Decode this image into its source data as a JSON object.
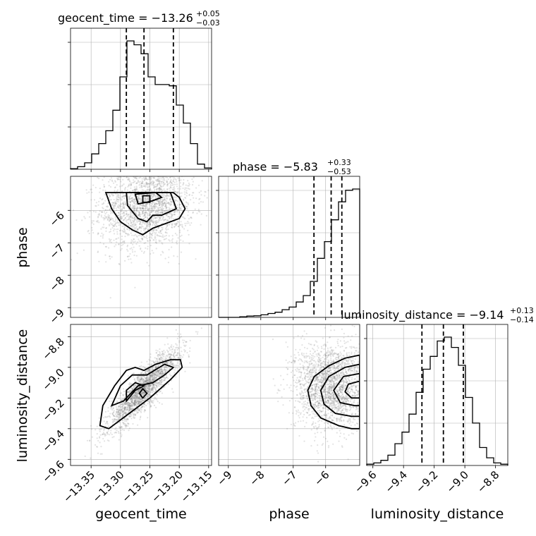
{
  "chart_data": {
    "type": "corner",
    "parameters": [
      {
        "name": "geocent_time",
        "label": "geocent_time",
        "range": [
          -13.385,
          -13.145
        ],
        "ticks": [
          -13.35,
          -13.3,
          -13.25,
          -13.2,
          -13.15
        ],
        "tick_labels": [
          "−13.35",
          "−13.30",
          "−13.25",
          "−13.20",
          "−13.15"
        ],
        "title": {
          "main": "geocent_time = −13.26",
          "upper": "+0.05",
          "lower": "−0.03"
        },
        "quantiles": [
          -13.29,
          -13.26,
          -13.21
        ],
        "hist_bins": [
          -13.385,
          -13.373,
          -13.361,
          -13.349,
          -13.337,
          -13.325,
          -13.313,
          -13.301,
          -13.289,
          -13.277,
          -13.265,
          -13.253,
          -13.241,
          -13.229,
          -13.217,
          -13.205,
          -13.193,
          -13.181,
          -13.169,
          -13.157,
          -13.145
        ],
        "hist_counts": [
          0.005,
          0.02,
          0.05,
          0.12,
          0.2,
          0.3,
          0.46,
          0.72,
          1.0,
          0.97,
          0.9,
          0.72,
          0.66,
          0.66,
          0.65,
          0.5,
          0.36,
          0.2,
          0.04,
          0.01
        ]
      },
      {
        "name": "phase",
        "label": "phase",
        "range": [
          -9.3,
          -4.95
        ],
        "ticks": [
          -9,
          -8,
          -7,
          -6
        ],
        "tick_labels": [
          "−9",
          "−8",
          "−7",
          "−6"
        ],
        "title": {
          "main": "phase = −5.83",
          "upper": "+0.33",
          "lower": "−0.53"
        },
        "quantiles": [
          -6.36,
          -5.83,
          -5.5
        ],
        "hist_bins": [
          -9.3,
          -9.0825,
          -8.865,
          -8.6475,
          -8.43,
          -8.2125,
          -7.995,
          -7.7775,
          -7.56,
          -7.3425,
          -7.125,
          -6.9075,
          -6.69,
          -6.4725,
          -6.255,
          -6.0375,
          -5.82,
          -5.6025,
          -5.385,
          -5.1675,
          -4.95
        ],
        "hist_counts": [
          0.0,
          0.0,
          0.0,
          0.005,
          0.01,
          0.012,
          0.02,
          0.03,
          0.04,
          0.06,
          0.08,
          0.12,
          0.17,
          0.28,
          0.46,
          0.59,
          0.76,
          0.9,
          0.99,
          1.0
        ]
      },
      {
        "name": "luminosity_distance",
        "label": "luminosity_distance",
        "range": [
          -9.64,
          -8.72
        ],
        "ticks": [
          -9.6,
          -9.4,
          -9.2,
          -9.0,
          -8.8
        ],
        "tick_labels": [
          "−9.6",
          "−9.4",
          "−9.2",
          "−9.0",
          "−8.8"
        ],
        "title": {
          "main": "luminosity_distance = −9.14",
          "upper": "+0.13",
          "lower": "−0.14"
        },
        "quantiles": [
          -9.28,
          -9.14,
          -9.01
        ],
        "hist_bins": [
          -9.64,
          -9.594,
          -9.548,
          -9.502,
          -9.456,
          -9.41,
          -9.364,
          -9.318,
          -9.272,
          -9.226,
          -9.18,
          -9.134,
          -9.088,
          -9.042,
          -8.996,
          -8.95,
          -8.904,
          -8.858,
          -8.812,
          -8.766,
          -8.72
        ],
        "hist_counts": [
          0.01,
          0.02,
          0.04,
          0.08,
          0.17,
          0.26,
          0.4,
          0.57,
          0.75,
          0.85,
          0.97,
          1.0,
          0.92,
          0.78,
          0.53,
          0.33,
          0.14,
          0.06,
          0.02,
          0.01
        ]
      }
    ],
    "grid": true,
    "pairs": [
      {
        "x": "geocent_time",
        "y": "phase",
        "mean": [
          -13.255,
          -5.85
        ],
        "std": [
          0.04,
          0.65
        ],
        "corr": 0.15,
        "contours": [
          [
            [
              -13.325,
              -5.45
            ],
            [
              -13.315,
              -5.95
            ],
            [
              -13.3,
              -6.35
            ],
            [
              -13.28,
              -6.6
            ],
            [
              -13.262,
              -6.75
            ],
            [
              -13.245,
              -6.55
            ],
            [
              -13.23,
              -6.45
            ],
            [
              -13.2,
              -6.25
            ],
            [
              -13.19,
              -5.95
            ],
            [
              -13.2,
              -5.6
            ],
            [
              -13.21,
              -5.45
            ]
          ],
          [
            [
              -13.29,
              -5.45
            ],
            [
              -13.288,
              -5.85
            ],
            [
              -13.27,
              -6.25
            ],
            [
              -13.255,
              -6.35
            ],
            [
              -13.245,
              -6.15
            ],
            [
              -13.23,
              -6.15
            ],
            [
              -13.205,
              -5.95
            ],
            [
              -13.21,
              -5.7
            ],
            [
              -13.215,
              -5.45
            ]
          ],
          [
            [
              -13.275,
              -5.5
            ],
            [
              -13.27,
              -5.8
            ],
            [
              -13.255,
              -5.75
            ],
            [
              -13.245,
              -5.7
            ],
            [
              -13.23,
              -5.6
            ],
            [
              -13.24,
              -5.45
            ]
          ],
          [
            [
              -13.262,
              -5.55
            ],
            [
              -13.262,
              -5.75
            ],
            [
              -13.25,
              -5.75
            ],
            [
              -13.25,
              -5.55
            ]
          ]
        ]
      },
      {
        "x": "geocent_time",
        "y": "luminosity_distance",
        "mean": [
          -13.26,
          -9.14
        ],
        "std": [
          0.03,
          0.13
        ],
        "corr": 0.88,
        "contours": [
          [
            [
              -13.335,
              -9.38
            ],
            [
              -13.32,
              -9.4
            ],
            [
              -13.285,
              -9.3
            ],
            [
              -13.25,
              -9.2
            ],
            [
              -13.215,
              -9.08
            ],
            [
              -13.195,
              -9.0
            ],
            [
              -13.198,
              -8.95
            ],
            [
              -13.215,
              -8.95
            ],
            [
              -13.24,
              -8.98
            ],
            [
              -13.26,
              -9.02
            ],
            [
              -13.275,
              -9.0
            ],
            [
              -13.29,
              -9.02
            ],
            [
              -13.31,
              -9.12
            ],
            [
              -13.33,
              -9.25
            ]
          ],
          [
            [
              -13.315,
              -9.25
            ],
            [
              -13.295,
              -9.22
            ],
            [
              -13.27,
              -9.12
            ],
            [
              -13.245,
              -9.1
            ],
            [
              -13.225,
              -9.05
            ],
            [
              -13.21,
              -9.0
            ],
            [
              -13.225,
              -8.98
            ],
            [
              -13.255,
              -9.05
            ],
            [
              -13.28,
              -9.05
            ],
            [
              -13.3,
              -9.12
            ]
          ],
          [
            [
              -13.29,
              -9.22
            ],
            [
              -13.275,
              -9.15
            ],
            [
              -13.26,
              -9.12
            ],
            [
              -13.275,
              -9.1
            ],
            [
              -13.29,
              -9.15
            ]
          ],
          [
            [
              -13.262,
              -9.2
            ],
            [
              -13.255,
              -9.17
            ],
            [
              -13.262,
              -9.14
            ],
            [
              -13.268,
              -9.17
            ]
          ]
        ]
      },
      {
        "x": "phase",
        "y": "luminosity_distance",
        "mean": [
          -5.85,
          -9.12
        ],
        "std": [
          0.55,
          0.14
        ],
        "corr": 0.0,
        "contours": [
          [
            [
              -4.95,
              -8.92
            ],
            [
              -5.4,
              -8.94
            ],
            [
              -5.9,
              -8.99
            ],
            [
              -6.35,
              -9.06
            ],
            [
              -6.55,
              -9.15
            ],
            [
              -6.45,
              -9.25
            ],
            [
              -6.15,
              -9.33
            ],
            [
              -5.6,
              -9.38
            ],
            [
              -5.2,
              -9.4
            ],
            [
              -4.95,
              -9.4
            ]
          ],
          [
            [
              -4.95,
              -8.98
            ],
            [
              -5.4,
              -9.0
            ],
            [
              -5.9,
              -9.06
            ],
            [
              -6.15,
              -9.15
            ],
            [
              -6.05,
              -9.24
            ],
            [
              -5.7,
              -9.3
            ],
            [
              -5.2,
              -9.32
            ],
            [
              -4.95,
              -9.32
            ]
          ],
          [
            [
              -4.95,
              -9.04
            ],
            [
              -5.45,
              -9.06
            ],
            [
              -5.75,
              -9.15
            ],
            [
              -5.55,
              -9.23
            ],
            [
              -5.1,
              -9.25
            ],
            [
              -4.95,
              -9.25
            ]
          ],
          [
            [
              -4.95,
              -9.09
            ],
            [
              -5.3,
              -9.11
            ],
            [
              -5.4,
              -9.16
            ],
            [
              -5.2,
              -9.2
            ],
            [
              -4.95,
              -9.2
            ]
          ]
        ]
      }
    ]
  }
}
